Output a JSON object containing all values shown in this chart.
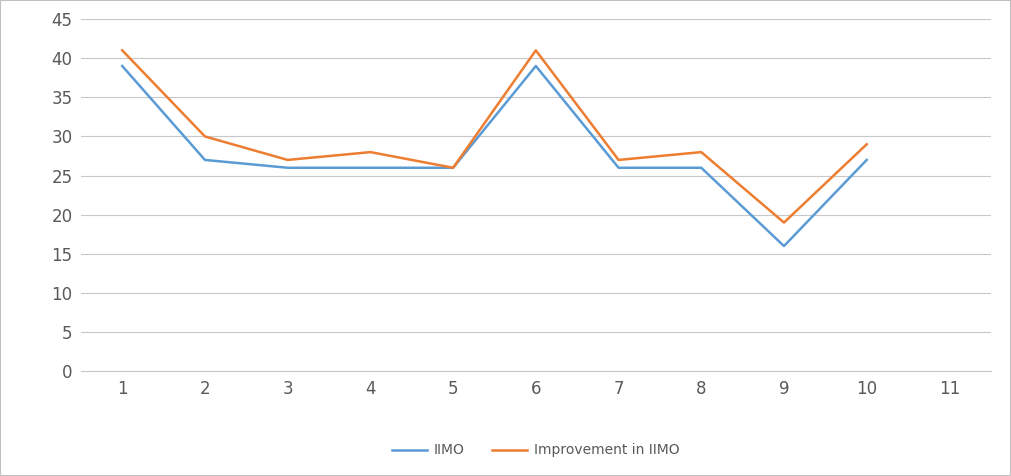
{
  "x": [
    1,
    2,
    3,
    4,
    5,
    6,
    7,
    8,
    9,
    10
  ],
  "iimo": [
    39,
    27,
    26,
    26,
    26,
    39,
    26,
    26,
    16,
    27
  ],
  "improvement": [
    41,
    30,
    27,
    28,
    26,
    41,
    27,
    28,
    19,
    29
  ],
  "iimo_color": "#5b9bd5",
  "improvement_color": "#ed7d31",
  "iimo_label": "IIMO",
  "improvement_label": "Improvement in IIMO",
  "xlim": [
    0.5,
    11.5
  ],
  "ylim": [
    0,
    45
  ],
  "yticks": [
    0,
    5,
    10,
    15,
    20,
    25,
    30,
    35,
    40,
    45
  ],
  "xticks": [
    1,
    2,
    3,
    4,
    5,
    6,
    7,
    8,
    9,
    10,
    11
  ],
  "background_color": "#ffffff",
  "grid_color": "#c8c8c8",
  "line_width": 1.8,
  "legend_fontsize": 10,
  "tick_fontsize": 12,
  "tick_color": "#595959",
  "border_color": "#c0c0c0"
}
